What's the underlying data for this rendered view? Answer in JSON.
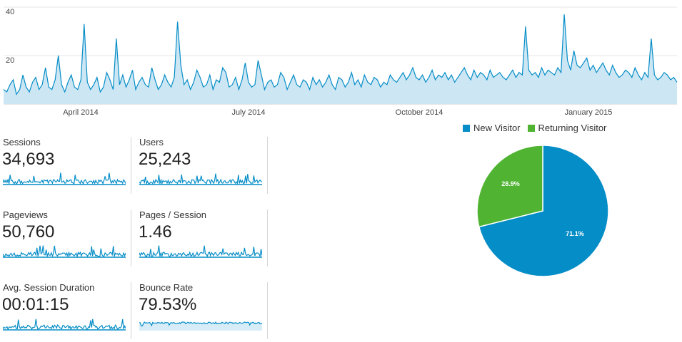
{
  "chart_data": [
    {
      "type": "line",
      "title": "",
      "y_ticks": [
        "40",
        "20"
      ],
      "x_ticks": [
        "April 2014",
        "July 2014",
        "October 2014",
        "January 2015"
      ],
      "ylim": [
        0,
        40
      ],
      "series": [
        {
          "values": [
            6,
            5,
            8,
            10,
            4,
            6,
            12,
            7,
            5,
            9,
            11,
            6,
            8,
            15,
            7,
            6,
            10,
            20,
            8,
            5,
            9,
            12,
            7,
            6,
            10,
            33,
            9,
            6,
            8,
            11,
            5,
            7,
            13,
            10,
            6,
            27,
            8,
            12,
            7,
            10,
            14,
            6,
            9,
            11,
            8,
            7,
            15,
            10,
            6,
            8,
            12,
            9,
            7,
            11,
            34,
            16,
            8,
            10,
            6,
            9,
            14,
            11,
            7,
            8,
            12,
            6,
            10,
            9,
            15,
            13,
            7,
            8,
            11,
            6,
            10,
            17,
            9,
            7,
            8,
            18,
            12,
            6,
            9,
            10,
            7,
            8,
            13,
            11,
            6,
            9,
            12,
            8,
            7,
            10,
            9,
            6,
            11,
            8,
            10,
            7,
            9,
            12,
            8,
            6,
            11,
            10,
            7,
            9,
            13,
            8,
            10,
            7,
            12,
            9,
            8,
            11,
            10,
            7,
            9,
            8,
            12,
            10,
            9,
            11,
            13,
            10,
            12,
            15,
            11,
            10,
            12,
            9,
            11,
            14,
            10,
            12,
            11,
            13,
            10,
            12,
            9,
            11,
            13,
            15,
            12,
            10,
            14,
            11,
            13,
            12,
            10,
            14,
            11,
            12,
            13,
            11,
            10,
            12,
            14,
            11,
            13,
            12,
            32,
            14,
            12,
            13,
            11,
            15,
            12,
            14,
            13,
            12,
            15,
            13,
            37,
            18,
            14,
            22,
            16,
            15,
            17,
            19,
            14,
            16,
            13,
            15,
            17,
            14,
            12,
            16,
            13,
            11,
            12,
            14,
            13,
            11,
            15,
            12,
            10,
            13,
            11,
            27,
            12,
            10,
            11,
            13,
            12,
            10,
            11,
            9
          ]
        }
      ]
    },
    {
      "type": "pie",
      "legend": [
        "New Visitor",
        "Returning Visitor"
      ],
      "values": [
        71.1,
        28.9
      ],
      "labels": [
        "71.1%",
        "28.9%"
      ],
      "colors": [
        "#058dc7",
        "#50b432"
      ]
    }
  ],
  "metrics": [
    {
      "label": "Sessions",
      "value": "34,693"
    },
    {
      "label": "Users",
      "value": "25,243"
    },
    {
      "label": "Pageviews",
      "value": "50,760"
    },
    {
      "label": "Pages / Session",
      "value": "1.46"
    },
    {
      "label": "Avg. Session Duration",
      "value": "00:01:15"
    },
    {
      "label": "Bounce Rate",
      "value": "79.53%"
    }
  ],
  "colors": {
    "line": "#058dc7",
    "fill": "#e6f2f8",
    "new": "#058dc7",
    "returning": "#50b432"
  }
}
